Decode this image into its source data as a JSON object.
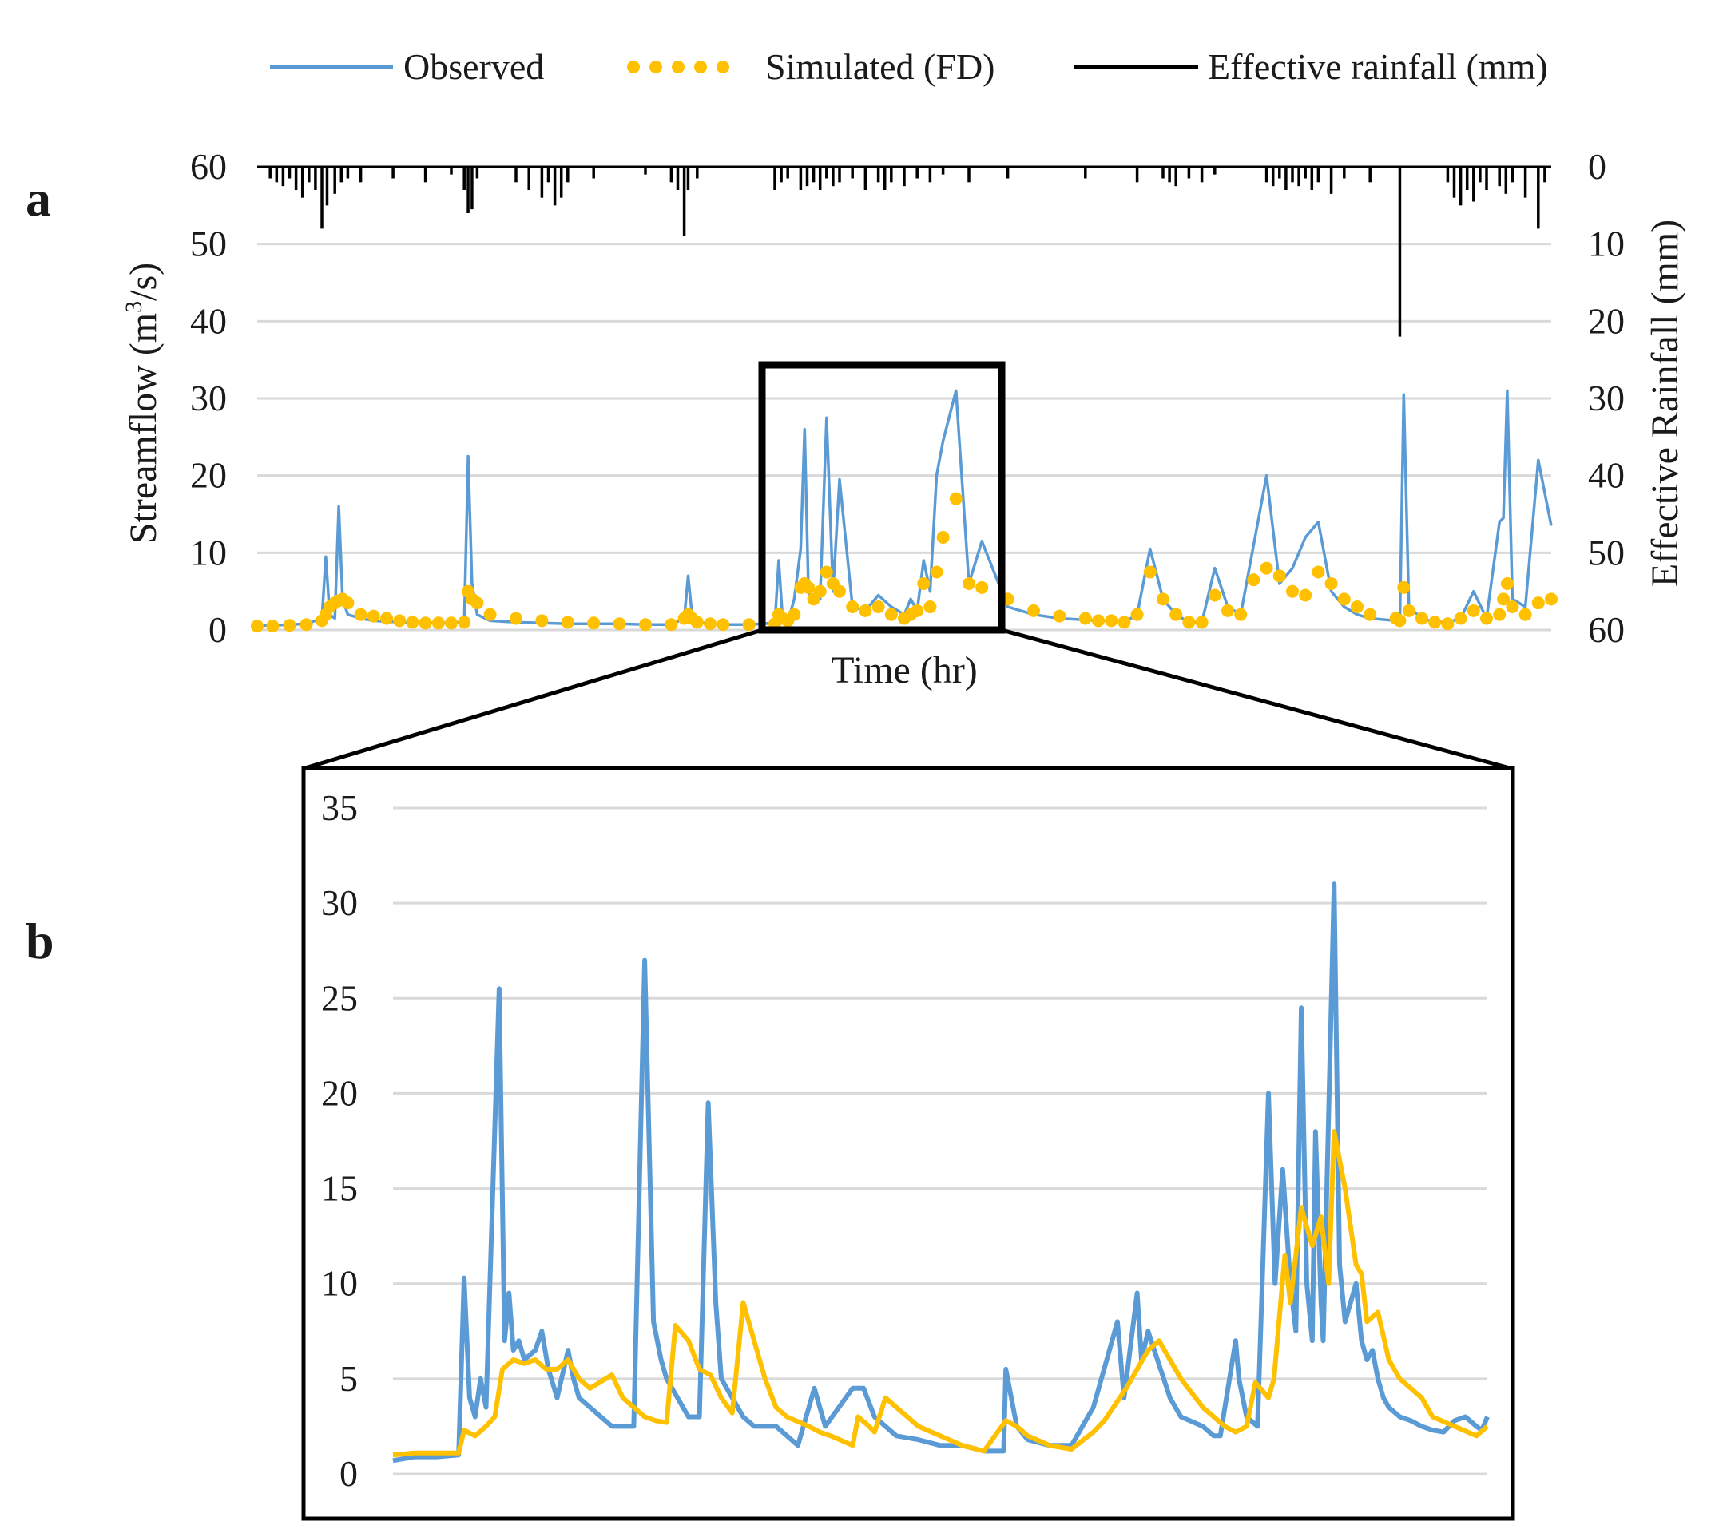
{
  "colors": {
    "observed": "#5b9bd5",
    "simulated": "#ffc000",
    "rainfall": "#000000",
    "grid": "#d9d9d9"
  },
  "legend": {
    "observed": "Observed",
    "simulated": "Simulated (FD)",
    "rainfall": "Effective rainfall (mm)"
  },
  "panels": {
    "a": "a",
    "b": "b"
  },
  "chart_data": [
    {
      "id": "a",
      "type": "line",
      "title": "",
      "xlabel": "Time (hr)",
      "ylabel": "Streamflow (m3/s)",
      "ylabel_main": "Streamflow (m",
      "ylabel_sup": "3",
      "ylabel_tail": "/s)",
      "y2label": "Effective Rainfall (mm)",
      "ylim": [
        0,
        60
      ],
      "y2lim": [
        60,
        0
      ],
      "yticks": [
        "0",
        "10",
        "20",
        "30",
        "40",
        "50",
        "60"
      ],
      "y2ticks": [
        "60",
        "50",
        "40",
        "30",
        "20",
        "10",
        "0"
      ],
      "grid": true,
      "legend_position": "top",
      "x": [
        0,
        1.2,
        2.5,
        3.8,
        5,
        5.3,
        5.6,
        6,
        6.3,
        6.6,
        7,
        8,
        9,
        10,
        11,
        12,
        13,
        14,
        15,
        16,
        16.3,
        16.6,
        17,
        18,
        20,
        22,
        24,
        26,
        28,
        30,
        32,
        33,
        33.3,
        33.6,
        34,
        35,
        36,
        38,
        40,
        40.3,
        40.6,
        41,
        41.5,
        42,
        42.3,
        42.6,
        43,
        43.5,
        44,
        44.5,
        45,
        46,
        47,
        48,
        49,
        50,
        50.5,
        51,
        51.5,
        52,
        52.5,
        53,
        54,
        55,
        56,
        58,
        60,
        62,
        64,
        65,
        66,
        67,
        68,
        69,
        70,
        71,
        72,
        73,
        74,
        75,
        76,
        77,
        78,
        79,
        80,
        81,
        82,
        83,
        84,
        85,
        86,
        88,
        88.3,
        88.6,
        89,
        90,
        91,
        92,
        93,
        94,
        95,
        96,
        96.3,
        96.6,
        97,
        98,
        99,
        100
      ],
      "series": [
        {
          "name": "Observed",
          "values": [
            0.6,
            0.6,
            0.7,
            0.8,
            1.5,
            9.5,
            2,
            1.5,
            16,
            4,
            2,
            1.5,
            1.2,
            1.1,
            1,
            1,
            0.9,
            0.9,
            0.9,
            1,
            22.5,
            6,
            2,
            1.2,
            1,
            0.9,
            0.8,
            0.8,
            0.8,
            0.7,
            0.7,
            1.5,
            7,
            2,
            1,
            0.8,
            0.7,
            0.7,
            0.9,
            9,
            1.5,
            1,
            4,
            10.5,
            26,
            5,
            3.5,
            4,
            27.5,
            5,
            19.5,
            3,
            2.5,
            4.5,
            3,
            2,
            4,
            2.5,
            9,
            5,
            20,
            24.5,
            31,
            6,
            11.5,
            3,
            2,
            1.5,
            1.3,
            1.2,
            1.2,
            1,
            2,
            10.5,
            4,
            2,
            1,
            1,
            8,
            3,
            2,
            11,
            20,
            6,
            8,
            12,
            14,
            5,
            3,
            2,
            1.5,
            1.2,
            1.2,
            30.5,
            3,
            1.5,
            1,
            1,
            1.5,
            5,
            1.5,
            14,
            14.5,
            31,
            4,
            3,
            22,
            13.5
          ]
        },
        {
          "name": "Simulated (FD)",
          "values": [
            0.5,
            0.5,
            0.6,
            0.7,
            1.2,
            2,
            3,
            3.5,
            3.8,
            4,
            3.5,
            2,
            1.8,
            1.5,
            1.2,
            1,
            0.9,
            0.9,
            0.9,
            1,
            5,
            4,
            3.5,
            2,
            1.5,
            1.2,
            1,
            0.9,
            0.8,
            0.7,
            0.7,
            1.5,
            2,
            1.5,
            1,
            0.8,
            0.7,
            0.7,
            0.8,
            2,
            1.5,
            1.2,
            2,
            5.5,
            6,
            5.5,
            4,
            5,
            7.5,
            6,
            5,
            3,
            2.5,
            3,
            2,
            1.5,
            2,
            2.5,
            6,
            3,
            7.5,
            12,
            17,
            6,
            5.5,
            4,
            2.5,
            1.8,
            1.5,
            1.2,
            1.2,
            1,
            2,
            7.5,
            4,
            2,
            1,
            1,
            4.5,
            2.5,
            2,
            6.5,
            8,
            7,
            5,
            4.5,
            7.5,
            6,
            4,
            3,
            2,
            1.5,
            1.2,
            5.5,
            2.5,
            1.5,
            1,
            0.8,
            1.5,
            2.5,
            1.5,
            2,
            4,
            6,
            3,
            2,
            3.5,
            4
          ]
        },
        {
          "name": "Effective rainfall (mm)",
          "axis": "right",
          "x": [
            1,
            1.5,
            2,
            2.5,
            3,
            3.5,
            4,
            4.5,
            5,
            5.4,
            6,
            6.5,
            7,
            8,
            10.5,
            13,
            15,
            16,
            16.3,
            16.6,
            17,
            20,
            21,
            22,
            22.5,
            23,
            23.5,
            24,
            26,
            30,
            32,
            32.5,
            33,
            33.3,
            34,
            40,
            40.5,
            41,
            42,
            42.5,
            43,
            43.5,
            44,
            44.5,
            45,
            46,
            47,
            48,
            48.5,
            49,
            50,
            51,
            52,
            53,
            55,
            58,
            64,
            68,
            70,
            70.5,
            71,
            72,
            73,
            74,
            78,
            78.5,
            79,
            79.5,
            80,
            80.5,
            81,
            81.5,
            82,
            83,
            84,
            86,
            88.3,
            92,
            92.5,
            93,
            93.5,
            94,
            94.5,
            95,
            96,
            96.5,
            97,
            98,
            99,
            99.5
          ],
          "values": [
            1.5,
            2,
            2.5,
            1.5,
            3,
            4,
            2,
            3,
            8,
            5,
            3.5,
            2,
            1.5,
            2,
            1.5,
            2,
            1,
            3,
            6,
            5.5,
            1.5,
            2,
            3,
            4,
            2,
            5,
            4,
            2,
            1.5,
            1,
            2,
            3,
            9,
            3,
            1.5,
            3,
            2,
            1.5,
            3,
            2.5,
            2,
            3,
            1.5,
            2.5,
            2,
            1.5,
            3,
            2,
            3,
            2,
            2.5,
            1.5,
            2,
            1,
            2,
            1.5,
            1.5,
            2,
            1.5,
            2,
            2.5,
            1.5,
            2,
            1,
            2,
            2.5,
            1.5,
            3,
            2,
            2.5,
            1.5,
            3,
            2,
            3.5,
            1.5,
            2,
            22,
            2,
            4,
            5,
            3,
            4.5,
            2,
            3,
            2.5,
            3.5,
            2,
            4,
            8,
            2
          ]
        }
      ]
    },
    {
      "id": "b",
      "type": "line",
      "title": "",
      "xlabel": "",
      "ylabel": "",
      "ylim": [
        0,
        35
      ],
      "yticks": [
        "0",
        "5",
        "10",
        "15",
        "20",
        "25",
        "30",
        "35"
      ],
      "grid": true,
      "x": [
        0,
        2,
        4,
        6,
        6.5,
        7,
        7.5,
        8,
        8.5,
        9,
        9.5,
        10,
        10.5,
        11,
        11.5,
        12,
        12.5,
        13,
        14,
        15,
        15.5,
        16,
        16.5,
        17,
        18,
        19,
        20,
        21,
        22,
        23,
        24,
        25,
        25.5,
        26,
        26.5,
        27,
        28,
        29,
        30,
        31,
        31.5,
        32,
        32.5,
        33,
        34,
        36,
        38,
        38.5,
        39,
        40,
        41,
        42,
        42.5,
        43,
        44,
        46,
        48,
        50,
        52,
        54,
        55,
        55.5,
        56,
        57,
        58,
        60,
        62,
        63,
        64,
        65,
        66,
        66.5,
        67,
        68,
        68.5,
        69,
        70,
        71,
        72,
        74,
        75,
        76,
        76.5,
        77,
        78,
        79,
        79.5,
        80,
        80.5,
        81,
        81.5,
        82,
        82.5,
        83,
        83.5,
        84,
        84.5,
        85,
        86,
        87,
        88,
        89,
        90,
        92,
        94,
        96,
        98,
        100
      ],
      "series": [
        {
          "name": "Observed",
          "values": [
            0.7,
            0.9,
            0.9,
            1,
            10.3,
            4,
            3,
            5,
            3.5,
            25.5,
            7,
            9.5,
            6.5,
            7,
            6,
            6.5,
            7.5,
            5.5,
            4,
            6.5,
            5,
            4,
            3.5,
            3,
            2.5,
            2.5,
            2.5,
            2.5,
            27,
            8,
            6,
            5,
            4,
            3,
            3,
            19.5,
            9,
            5,
            4,
            3,
            2.5,
            2.5,
            2.5,
            2,
            1.5,
            4.5,
            2.5,
            4.5,
            4.5,
            3,
            2,
            1.8,
            1.5,
            1.5,
            1.2,
            1.2,
            1.2,
            5.5,
            2.5,
            1.8,
            1.5,
            1.5,
            3.5,
            8,
            4,
            9.5,
            6,
            7.5,
            4,
            3,
            2.5,
            2,
            2,
            7,
            5,
            3,
            2.5,
            20,
            10,
            16,
            10,
            7.5,
            24.5,
            10,
            7,
            18,
            9,
            7,
            31,
            11,
            8,
            10,
            7,
            6,
            6.5,
            5,
            4,
            3.5,
            3,
            2.8,
            2.5,
            2.3,
            2.2,
            2.8,
            3,
            2.5,
            2.3,
            3
          ],
          "x": [
            0,
            2,
            4,
            6,
            6.5,
            7,
            7.5,
            8,
            8.5,
            9.7,
            10.2,
            10.6,
            11,
            11.5,
            12,
            13,
            13.6,
            14.2,
            15,
            16,
            16.5,
            17,
            18,
            19,
            20,
            21,
            21.5,
            22,
            23,
            23.8,
            24.5,
            25,
            26,
            27,
            28,
            28.8,
            29.5,
            30,
            31,
            32,
            33,
            34,
            35,
            36,
            37,
            38.5,
            39.5,
            42,
            43,
            44,
            46,
            48,
            50,
            52,
            54,
            55,
            55.8,
            56,
            57,
            58,
            60,
            62,
            64,
            66.2,
            66.8,
            68,
            68.4,
            69,
            71,
            72,
            74,
            75,
            75.6,
            77,
            77.3,
            78,
            79,
            80,
            80.6,
            81.3,
            82,
            82.5,
            83,
            83.5,
            84,
            84.3,
            84.8,
            85,
            86,
            86.5,
            87,
            88,
            88.5,
            89,
            89.5,
            90,
            90.5,
            91,
            92,
            93,
            94,
            95,
            96,
            97,
            98,
            99,
            99.5,
            100
          ]
        },
        {
          "name": "Simulated (FD)",
          "values": [
            1,
            1.1,
            1.1,
            1.1,
            2.3,
            2,
            2.5,
            3,
            5.5,
            6,
            5.8,
            6,
            5.5,
            5.5,
            6,
            5,
            4.5,
            5.2,
            4,
            3.5,
            3,
            2.8,
            2.7,
            7.8,
            7,
            5.5,
            5.2,
            4,
            3.2,
            9,
            7,
            5,
            3.5,
            3,
            2.5,
            2.2,
            2,
            1.5,
            3,
            2.5,
            2.2,
            4,
            3.5,
            2.5,
            2,
            1.5,
            1.2,
            2.8,
            2.5,
            2,
            1.5,
            1.3,
            2.2,
            2.8,
            4.5,
            6.5,
            7,
            5,
            3.5,
            2.5,
            2.2,
            2.5,
            4.8,
            4,
            5,
            11.5,
            9,
            14,
            12,
            13.5,
            10,
            18,
            15,
            11,
            10.5,
            8,
            8.5,
            6,
            5,
            4,
            3,
            2.5,
            2,
            2.5
          ],
          "x": [
            0,
            2,
            4,
            6,
            6.5,
            7.5,
            8.5,
            9.3,
            10,
            11,
            12,
            13,
            14,
            15,
            16,
            17,
            18,
            20,
            21,
            22,
            23,
            24,
            25,
            25.8,
            27,
            28,
            29,
            30,
            31,
            32,
            33,
            34,
            35,
            36,
            38,
            39,
            40,
            42,
            42.5,
            43.5,
            44,
            45,
            46,
            48,
            50,
            52,
            54,
            56,
            57,
            58,
            60,
            62,
            64,
            65,
            67,
            69,
            70,
            72,
            74,
            76,
            77,
            78,
            78.8,
            80,
            80.5,
            81.5,
            82,
            83,
            84,
            84.8,
            85.5,
            86,
            87,
            88,
            88.5,
            89,
            90,
            91,
            92,
            94,
            95,
            97,
            99,
            100
          ]
        }
      ]
    }
  ]
}
